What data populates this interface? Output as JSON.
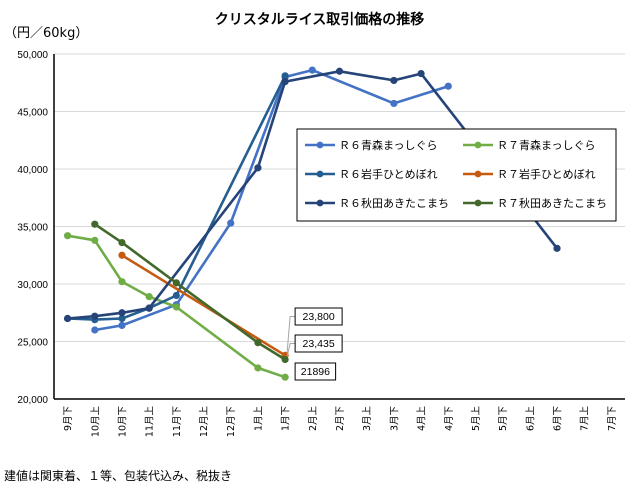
{
  "chart_data": {
    "type": "line",
    "title": "クリスタルライス取引価格の推移",
    "ylabel": "（円／60kg）",
    "xlabel": "",
    "ylim": [
      20000,
      50000
    ],
    "yticks": [
      "20,000",
      "25,000",
      "30,000",
      "35,000",
      "40,000",
      "45,000",
      "50,000"
    ],
    "ytick_values": [
      20000,
      25000,
      30000,
      35000,
      40000,
      45000,
      50000
    ],
    "grid": true,
    "legend_position": "right-center",
    "categories": [
      "9月下",
      "10月上",
      "10月下",
      "11月上",
      "11月下",
      "12月上",
      "12月下",
      "1月上",
      "1月下",
      "2月上",
      "2月下",
      "3月上",
      "3月下",
      "4月上",
      "4月下",
      "5月上",
      "5月下",
      "6月上",
      "6月下",
      "7月上",
      "7月下"
    ],
    "series": [
      {
        "name": "Ｒ６青森まっしぐら",
        "color": "#4472C4",
        "values": [
          null,
          26000,
          26400,
          null,
          28200,
          null,
          35300,
          null,
          48000,
          48600,
          null,
          null,
          45700,
          null,
          47200,
          null,
          null,
          null,
          null,
          null,
          null
        ]
      },
      {
        "name": "Ｒ７青森まっしぐら",
        "color": "#70AD47",
        "values": [
          34200,
          33800,
          30200,
          28900,
          28000,
          null,
          null,
          22700,
          21896,
          null,
          null,
          null,
          null,
          null,
          null,
          null,
          null,
          null,
          null,
          null,
          null
        ]
      },
      {
        "name": "Ｒ６岩手ひとめぼれ",
        "color": "#255E91",
        "values": [
          27000,
          26900,
          27000,
          27900,
          29000,
          null,
          null,
          null,
          48100,
          null,
          null,
          null,
          null,
          null,
          null,
          null,
          null,
          null,
          null,
          null,
          null
        ]
      },
      {
        "name": "Ｒ７岩手ひとめぼれ",
        "color": "#C55A11",
        "values": [
          null,
          null,
          32500,
          null,
          null,
          null,
          null,
          null,
          23800,
          null,
          null,
          null,
          null,
          null,
          null,
          null,
          null,
          null,
          null,
          null,
          null
        ]
      },
      {
        "name": "Ｒ６秋田あきたこまち",
        "color": "#264478",
        "values": [
          27000,
          27200,
          27500,
          27900,
          null,
          null,
          null,
          40100,
          47600,
          null,
          48500,
          null,
          47700,
          48300,
          null,
          null,
          null,
          null,
          33100,
          null,
          null
        ]
      },
      {
        "name": "Ｒ７秋田あきたこまち",
        "color": "#43682B",
        "values": [
          null,
          35200,
          33600,
          null,
          30100,
          null,
          null,
          24900,
          23435,
          null,
          null,
          null,
          null,
          null,
          null,
          null,
          null,
          null,
          null,
          null,
          null
        ]
      }
    ],
    "annotations": [
      {
        "series": "Ｒ７岩手ひとめぼれ",
        "category": "1月下",
        "text": "23,800"
      },
      {
        "series": "Ｒ７秋田あきたこまち",
        "category": "1月下",
        "text": "23,435"
      },
      {
        "series": "Ｒ７青森まっしぐら",
        "category": "1月下",
        "text": "21896"
      }
    ]
  },
  "footnote": "建値は関東着、１等、包装代込み、税抜き"
}
